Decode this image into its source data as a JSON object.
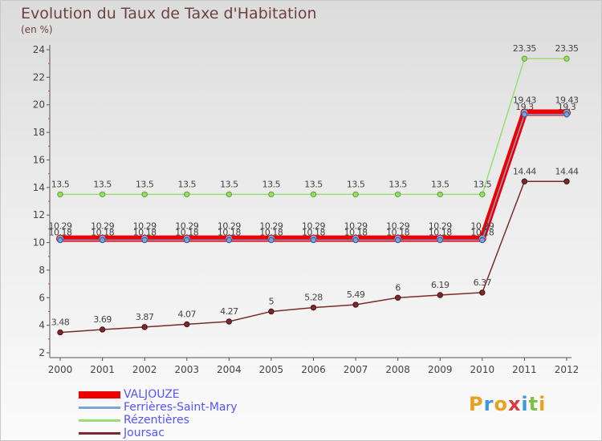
{
  "chart_data": {
    "type": "line",
    "title": "Evolution du Taux de Taxe d'Habitation",
    "subtitle": "(en %)",
    "categories": [
      "2000",
      "2001",
      "2002",
      "2003",
      "2004",
      "2005",
      "2006",
      "2007",
      "2008",
      "2009",
      "2010",
      "2011",
      "2012"
    ],
    "ylim": [
      2,
      24
    ],
    "yticks": [
      2,
      4,
      6,
      8,
      10,
      12,
      14,
      16,
      18,
      20,
      22,
      24
    ],
    "series": [
      {
        "name": "VALJOUZE",
        "color": "#ee0000",
        "values": [
          10.29,
          10.29,
          10.29,
          10.29,
          10.29,
          10.29,
          10.29,
          10.29,
          10.29,
          10.29,
          10.29,
          19.43,
          19.43
        ],
        "labels": [
          "10.29",
          "10.29",
          "10.29",
          "10.29",
          "10.29",
          "10.29",
          "10.29",
          "10.29",
          "10.29",
          "10.29",
          "10.29",
          "19.43",
          "19.43"
        ]
      },
      {
        "name": "Ferrières-Saint-Mary",
        "color": "#7ba3d6",
        "values": [
          10.18,
          10.18,
          10.18,
          10.18,
          10.18,
          10.18,
          10.18,
          10.18,
          10.18,
          10.18,
          10.18,
          19.3,
          19.3
        ],
        "labels": [
          "10.18",
          "10.18",
          "10.18",
          "10.18",
          "10.18",
          "10.18",
          "10.18",
          "10.18",
          "10.18",
          "10.18",
          "10.18",
          "19.3",
          "19.3"
        ]
      },
      {
        "name": "Rézentières",
        "color": "#99dd77",
        "values": [
          13.5,
          13.5,
          13.5,
          13.5,
          13.5,
          13.5,
          13.5,
          13.5,
          13.5,
          13.5,
          13.5,
          23.35,
          23.35
        ],
        "labels": [
          "13.5",
          "13.5",
          "13.5",
          "13.5",
          "13.5",
          "13.5",
          "13.5",
          "13.5",
          "13.5",
          "13.5",
          "13.5",
          "23.35",
          "23.35"
        ]
      },
      {
        "name": "Joursac",
        "color": "#7a2a2a",
        "values": [
          3.48,
          3.69,
          3.87,
          4.07,
          4.27,
          5,
          5.28,
          5.49,
          6,
          6.19,
          6.37,
          14.44,
          14.44
        ],
        "labels": [
          "3.48",
          "3.69",
          "3.87",
          "4.07",
          "4.27",
          "5",
          "5.28",
          "5.49",
          "6",
          "6.19",
          "6.37",
          "14.44",
          "14.44"
        ]
      }
    ],
    "legend": "bottom-left"
  },
  "logo": {
    "letters": [
      "P",
      "r",
      "o",
      "x",
      "i",
      "t",
      "i"
    ],
    "colors": [
      "#e8a020",
      "#3a9ad9",
      "#e8a020",
      "#d93a3a",
      "#3a9ad9",
      "#7cc242",
      "#e8a020"
    ]
  }
}
